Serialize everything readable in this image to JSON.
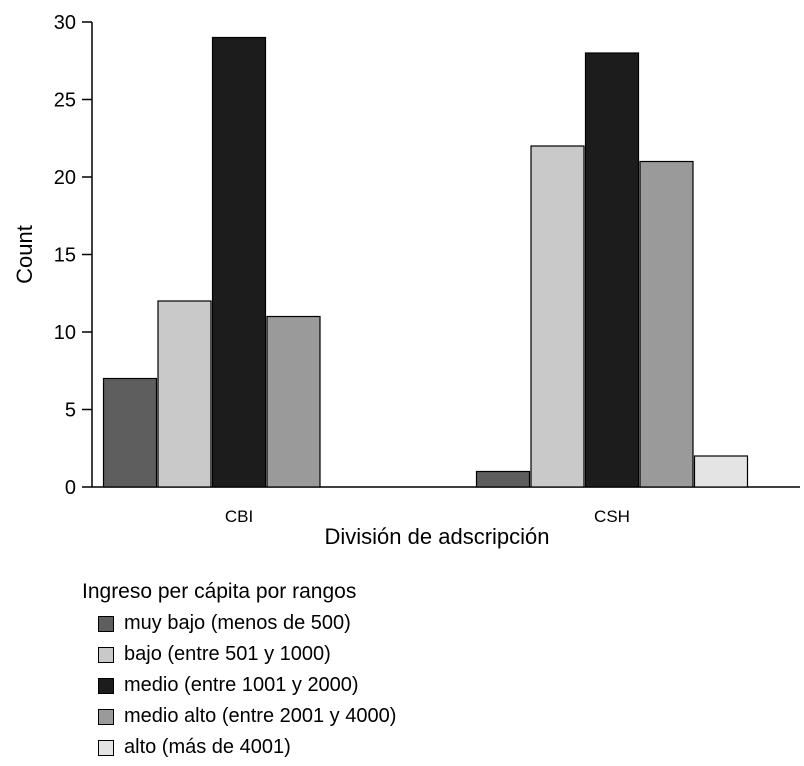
{
  "chart_data": {
    "type": "bar",
    "categories": [
      "CBI",
      "CSH"
    ],
    "series": [
      {
        "name": "muy bajo (menos de 500)",
        "values": [
          7,
          1
        ],
        "color": "#5e5e5e"
      },
      {
        "name": "bajo (entre 501 y 1000)",
        "values": [
          12,
          22
        ],
        "color": "#c9c9c9"
      },
      {
        "name": "medio (entre 1001 y 2000)",
        "values": [
          29,
          28
        ],
        "color": "#1c1c1c"
      },
      {
        "name": "medio alto (entre 2001 y 4000)",
        "values": [
          11,
          21
        ],
        "color": "#9a9a9a"
      },
      {
        "name": "alto (más de 4001)",
        "values": [
          0,
          2
        ],
        "color": "#e4e4e4"
      }
    ],
    "xlabel": "División de adscripción",
    "ylabel": "Count",
    "ylim": [
      0,
      30
    ],
    "yticks": [
      "0",
      "5",
      "10",
      "15",
      "20",
      "25",
      "30"
    ],
    "grid": false,
    "legend_title": "Ingreso per cápita por rangos",
    "legend_position": "bottom-left"
  }
}
